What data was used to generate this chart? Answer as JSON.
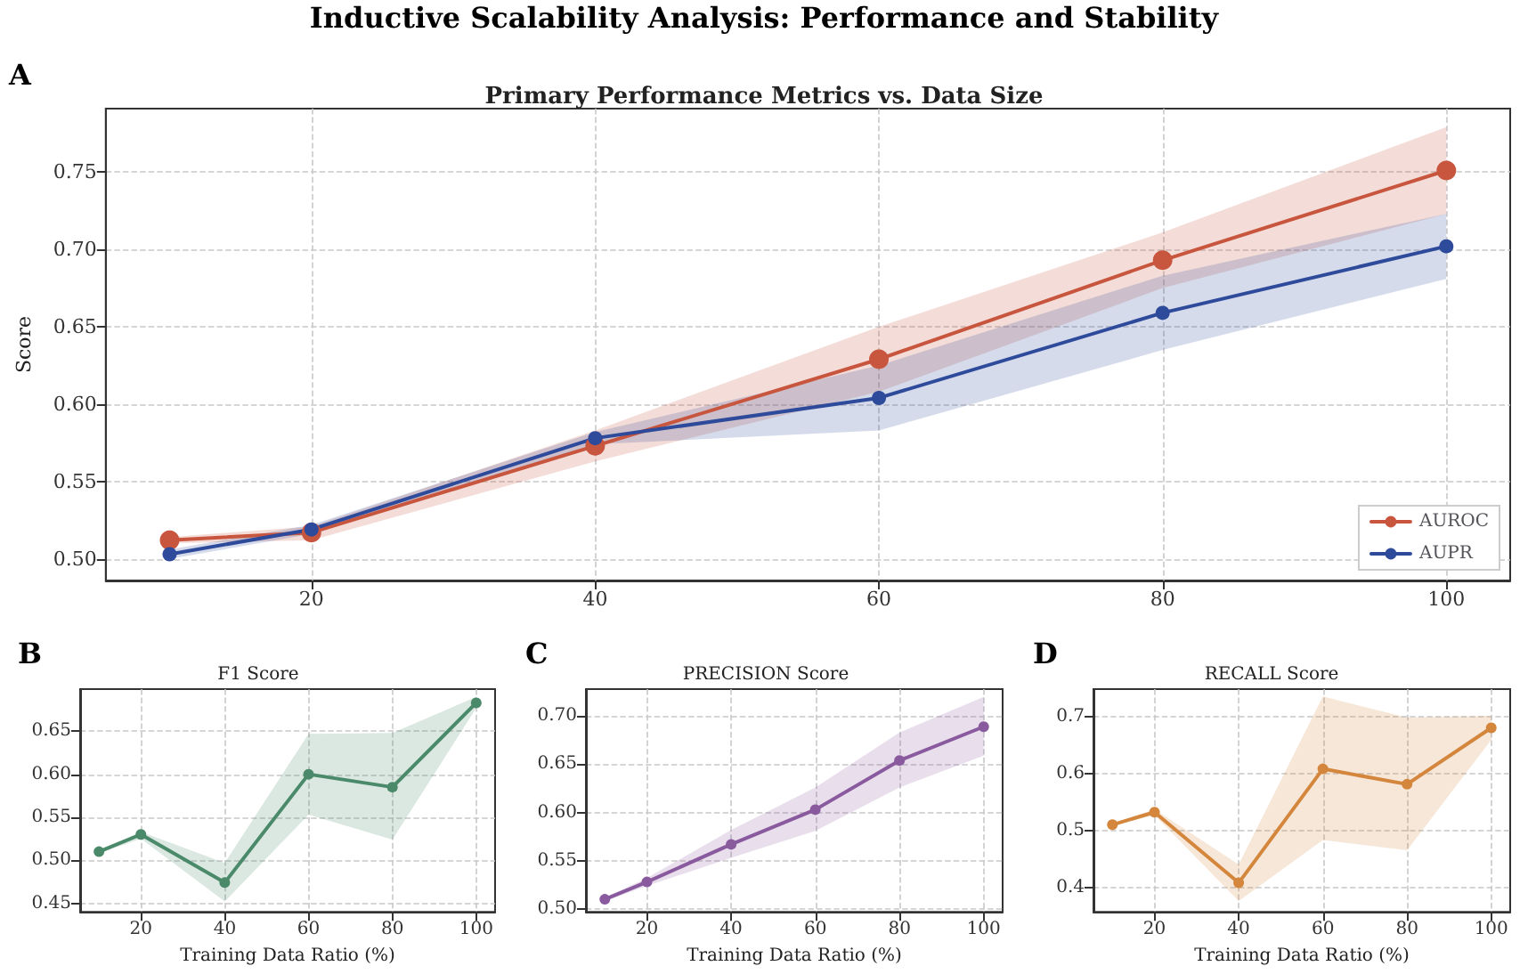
{
  "chart_data": [
    {
      "type": "line",
      "title": "Primary Performance Metrics vs. Data Size",
      "ylabel": "Score",
      "annotations": [
        "Inductive Scalability Analysis: Performance and Stability",
        "A"
      ],
      "x": [
        10,
        20,
        40,
        60,
        80,
        100
      ],
      "xlim": [
        5.5,
        104.5
      ],
      "xticks": [
        20,
        40,
        60,
        80,
        100
      ],
      "ylim": [
        0.486,
        0.791
      ],
      "yticks": [
        {
          "value": 0.5,
          "label": "0.50"
        },
        {
          "value": 0.55,
          "label": "0.55"
        },
        {
          "value": 0.6,
          "label": "0.60"
        },
        {
          "value": 0.65,
          "label": "0.65"
        },
        {
          "value": 0.7,
          "label": "0.70"
        },
        {
          "value": 0.75,
          "label": "0.75"
        }
      ],
      "grid": true,
      "legend": "bottom right",
      "marker": "circle",
      "line_style": "solid",
      "series": [
        {
          "name": "AUROC",
          "color": "#c8553d",
          "values": [
            0.512,
            0.517,
            0.573,
            0.629,
            0.693,
            0.751
          ],
          "lower": [
            0.51,
            0.512,
            0.563,
            0.608,
            0.675,
            0.723
          ],
          "upper": [
            0.514,
            0.521,
            0.583,
            0.65,
            0.711,
            0.779
          ]
        },
        {
          "name": "AUPR",
          "color": "#2e4a9a",
          "values": [
            0.503,
            0.519,
            0.578,
            0.604,
            0.659,
            0.702
          ],
          "lower": [
            0.5,
            0.516,
            0.574,
            0.583,
            0.635,
            0.681
          ],
          "upper": [
            0.506,
            0.522,
            0.582,
            0.625,
            0.683,
            0.723
          ]
        }
      ]
    },
    {
      "type": "line",
      "title": "F1 Score",
      "xlabel": "Training Data Ratio (%)",
      "annotations": [
        "B"
      ],
      "x": [
        10,
        20,
        40,
        60,
        80,
        100
      ],
      "xlim": [
        5.5,
        104.5
      ],
      "xticks": [
        20,
        40,
        60,
        80,
        100
      ],
      "ylim": [
        0.44,
        0.699
      ],
      "yticks": [
        {
          "value": 0.45,
          "label": "0.45"
        },
        {
          "value": 0.5,
          "label": "0.50"
        },
        {
          "value": 0.55,
          "label": "0.55"
        },
        {
          "value": 0.6,
          "label": "0.60"
        },
        {
          "value": 0.65,
          "label": "0.65"
        }
      ],
      "grid": true,
      "marker": "circle",
      "line_style": "solid",
      "series": [
        {
          "color": "#4a8a6a",
          "values": [
            0.51,
            0.53,
            0.474,
            0.6,
            0.585,
            0.683
          ],
          "lower": [
            0.508,
            0.525,
            0.452,
            0.553,
            0.524,
            0.677
          ],
          "upper": [
            0.512,
            0.533,
            0.497,
            0.647,
            0.648,
            0.69
          ]
        }
      ]
    },
    {
      "type": "line",
      "title": "PRECISION Score",
      "xlabel": "Training Data Ratio (%)",
      "annotations": [
        "C"
      ],
      "x": [
        10,
        20,
        40,
        60,
        80,
        100
      ],
      "xlim": [
        5.5,
        104.5
      ],
      "xticks": [
        20,
        40,
        60,
        80,
        100
      ],
      "ylim": [
        0.497,
        0.728
      ],
      "yticks": [
        {
          "value": 0.5,
          "label": "0.50"
        },
        {
          "value": 0.55,
          "label": "0.55"
        },
        {
          "value": 0.6,
          "label": "0.60"
        },
        {
          "value": 0.65,
          "label": "0.65"
        },
        {
          "value": 0.7,
          "label": "0.70"
        }
      ],
      "grid": true,
      "marker": "circle",
      "line_style": "solid",
      "series": [
        {
          "color": "#8a5a9e",
          "values": [
            0.51,
            0.528,
            0.567,
            0.603,
            0.654,
            0.689
          ],
          "lower": [
            0.508,
            0.524,
            0.553,
            0.581,
            0.626,
            0.659
          ],
          "upper": [
            0.512,
            0.532,
            0.582,
            0.626,
            0.683,
            0.72
          ]
        }
      ]
    },
    {
      "type": "line",
      "title": "RECALL Score",
      "xlabel": "Training Data Ratio (%)",
      "annotations": [
        "D"
      ],
      "x": [
        10,
        20,
        40,
        60,
        80,
        100
      ],
      "xlim": [
        5.5,
        104.5
      ],
      "xticks": [
        20,
        40,
        60,
        80,
        100
      ],
      "ylim": [
        0.357,
        0.748
      ],
      "yticks": [
        0.4,
        0.5,
        0.6,
        0.7
      ],
      "grid": true,
      "marker": "circle",
      "line_style": "solid",
      "series": [
        {
          "color": "#d4863d",
          "values": [
            0.51,
            0.532,
            0.408,
            0.608,
            0.581,
            0.68
          ],
          "lower": [
            0.508,
            0.527,
            0.376,
            0.483,
            0.465,
            0.659
          ],
          "upper": [
            0.512,
            0.537,
            0.44,
            0.735,
            0.698,
            0.701
          ]
        }
      ]
    }
  ]
}
